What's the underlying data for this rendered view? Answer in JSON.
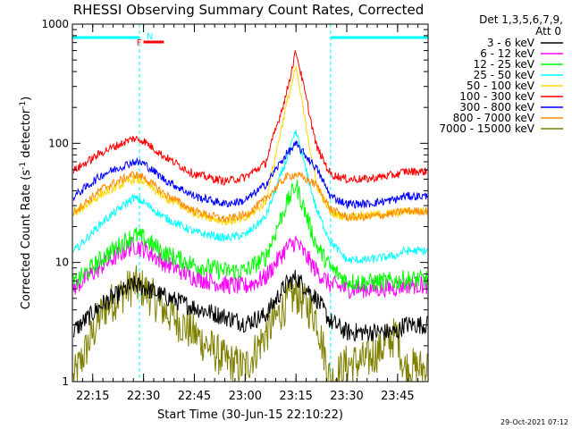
{
  "chart_data": {
    "type": "line",
    "title": "RHESSI Observing Summary Count Rates, Corrected",
    "xlabel": "Start Time (30-Jun-15 22:10:22)",
    "ylabel": "Corrected Count Rate (s⁻¹ detector⁻¹)",
    "ylabel_main": "Corrected Count Rate (s",
    "ylabel_sup1": "-1",
    "ylabel_mid": " detector",
    "ylabel_sup2": "-1",
    "ylabel_end": ")",
    "y_scale": "log",
    "ylim": [
      1,
      1000
    ],
    "xlim_minutes": [
      22.15,
      23.9
    ],
    "x_tick_labels": [
      "22:15",
      "22:30",
      "22:45",
      "23:00",
      "23:15",
      "23:30",
      "23:45"
    ],
    "x_tick_minutes": [
      22.25,
      22.5,
      22.75,
      23.0,
      23.25,
      23.5,
      23.75
    ],
    "y_tick_labels": [
      "1",
      "10",
      "100",
      "1000"
    ],
    "y_tick_values": [
      1,
      10,
      100,
      1000
    ],
    "legend_title": "Det 1,3,5,6,7,9,",
    "legend_subtitle": "Att 0",
    "legend_placement": "right",
    "annotations": [
      {
        "text": "N",
        "color": "#00ffff"
      },
      {
        "text": "F",
        "color": "#ff0000"
      }
    ],
    "night_intervals_minutes": [
      [
        22.15,
        22.48
      ],
      [
        23.42,
        23.9
      ]
    ],
    "flare_flag_interval_minutes": [
      22.5,
      22.6
    ],
    "series": [
      {
        "name": "3 - 6 keV",
        "color": "#000000",
        "x": [
          22.15,
          22.3,
          22.45,
          22.5,
          22.6,
          22.75,
          22.9,
          23.0,
          23.1,
          23.2,
          23.25,
          23.35,
          23.42,
          23.5,
          23.6,
          23.75,
          23.78
        ],
        "y": [
          2.6,
          4.5,
          6.5,
          6.2,
          5.2,
          4.2,
          3.5,
          3.1,
          3.6,
          6.5,
          7.5,
          5.0,
          3.2,
          2.6,
          2.6,
          2.6,
          3.0
        ]
      },
      {
        "name": "6 - 12 keV",
        "color": "#ff00ff",
        "x": [
          22.15,
          22.3,
          22.45,
          22.5,
          22.6,
          22.75,
          22.9,
          23.0,
          23.1,
          23.2,
          23.25,
          23.35,
          23.42,
          23.5,
          23.6,
          23.75,
          23.78
        ],
        "y": [
          6.0,
          9.5,
          14.0,
          13.0,
          10.0,
          7.5,
          6.5,
          6.3,
          7.5,
          13.0,
          15.0,
          8.5,
          6.5,
          6.0,
          6.0,
          6.2,
          6.5
        ]
      },
      {
        "name": "12 - 25 keV",
        "color": "#00ff00",
        "x": [
          22.15,
          22.3,
          22.45,
          22.5,
          22.6,
          22.75,
          22.9,
          23.0,
          23.1,
          23.2,
          23.25,
          23.35,
          23.42,
          23.5,
          23.6,
          23.75,
          23.78
        ],
        "y": [
          6.5,
          11.0,
          17.0,
          16.0,
          12.0,
          9.5,
          8.5,
          8.5,
          11.0,
          30.0,
          45.0,
          14.0,
          9.0,
          7.0,
          6.8,
          7.0,
          7.2
        ]
      },
      {
        "name": "25 - 50 keV",
        "color": "#00ffff",
        "x": [
          22.15,
          22.3,
          22.45,
          22.5,
          22.6,
          22.75,
          22.9,
          23.0,
          23.1,
          23.2,
          23.25,
          23.35,
          23.42,
          23.5,
          23.6,
          23.75,
          23.78
        ],
        "y": [
          12.0,
          22.0,
          35.0,
          32.0,
          24.0,
          18.0,
          16.0,
          17.0,
          24.0,
          70.0,
          125.0,
          28.0,
          15.0,
          10.5,
          10.5,
          11.5,
          12.5
        ]
      },
      {
        "name": "50 - 100 keV",
        "color": "#ffd700",
        "x": [
          22.15,
          22.3,
          22.45,
          22.5,
          22.6,
          22.75,
          22.9,
          23.0,
          23.1,
          23.2,
          23.25,
          23.35,
          23.42,
          23.5,
          23.6,
          23.75,
          23.78
        ],
        "y": [
          25.0,
          38.0,
          50.0,
          48.0,
          35.0,
          26.0,
          22.0,
          23.0,
          32.0,
          200.0,
          430.0,
          45.0,
          26.0,
          24.0,
          25.0,
          26.0,
          27.0
        ]
      },
      {
        "name": "100 - 300 keV",
        "color": "#ff0000",
        "x": [
          22.15,
          22.3,
          22.45,
          22.5,
          22.6,
          22.75,
          22.9,
          23.0,
          23.1,
          23.2,
          23.25,
          23.35,
          23.42,
          23.5,
          23.6,
          23.75,
          23.78
        ],
        "y": [
          58.0,
          85.0,
          110.0,
          105.0,
          78.0,
          55.0,
          48.0,
          52.0,
          68.0,
          250.0,
          600.0,
          95.0,
          55.0,
          50.0,
          50.0,
          55.0,
          58.0
        ]
      },
      {
        "name": "300 - 800 keV",
        "color": "#0000ff",
        "x": [
          22.15,
          22.3,
          22.45,
          22.5,
          22.6,
          22.75,
          22.9,
          23.0,
          23.1,
          23.2,
          23.25,
          23.35,
          23.42,
          23.5,
          23.6,
          23.75,
          23.78
        ],
        "y": [
          35.0,
          55.0,
          70.0,
          68.0,
          50.0,
          36.0,
          31.0,
          33.0,
          45.0,
          80.0,
          98.0,
          62.0,
          36.0,
          31.0,
          31.0,
          34.0,
          36.0
        ]
      },
      {
        "name": "800 - 7000 keV",
        "color": "#ff8c00",
        "x": [
          22.15,
          22.3,
          22.45,
          22.5,
          22.6,
          22.75,
          22.9,
          23.0,
          23.1,
          23.2,
          23.25,
          23.35,
          23.42,
          23.5,
          23.6,
          23.75,
          23.78
        ],
        "y": [
          26.0,
          42.0,
          55.0,
          52.0,
          38.0,
          27.0,
          23.0,
          25.0,
          34.0,
          52.0,
          55.0,
          45.0,
          28.0,
          24.0,
          24.0,
          26.0,
          27.0
        ]
      },
      {
        "name": "7000 - 15000 keV",
        "color": "#808000",
        "x": [
          22.15,
          22.3,
          22.45,
          22.5,
          22.6,
          22.75,
          22.9,
          23.0,
          23.1,
          23.2,
          23.25,
          23.35,
          23.42,
          23.5,
          23.6,
          23.75,
          23.78
        ],
        "y": [
          1.0,
          4.0,
          6.5,
          6.0,
          4.0,
          2.5,
          1.5,
          1.3,
          2.5,
          4.5,
          5.5,
          3.5,
          1.0,
          1.4,
          1.5,
          2.5,
          1.3
        ]
      }
    ]
  },
  "footer": {
    "timestamp": "29-Oct-2021 07:12"
  }
}
